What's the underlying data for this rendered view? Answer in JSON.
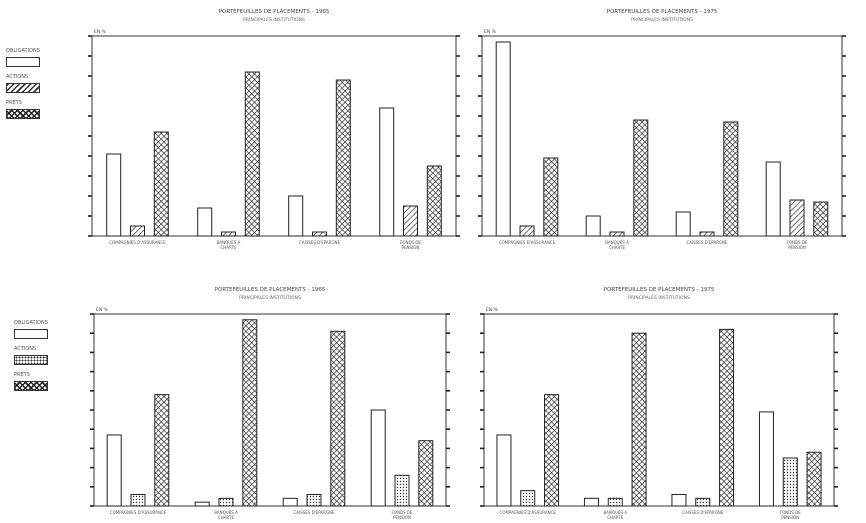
{
  "chart_data": [
    {
      "type": "bar",
      "title": "PORTEFEUILLES DE PLACEMENTS - 1965",
      "subtitle": "PRINCIPALES INSTITUTIONS",
      "ylabel": "EN %",
      "categories": [
        "COMPAGNIES D'ASSURANCE",
        "BANQUES A CHARTE",
        "CAISSES D'EPARGNE",
        "FONDS DE PENSION"
      ],
      "ylim": [
        0,
        100
      ],
      "series": [
        {
          "name": "OBLIGATIONS",
          "values": [
            41,
            14,
            20,
            64
          ]
        },
        {
          "name": "ACTIONS",
          "values": [
            5,
            2,
            2,
            15
          ]
        },
        {
          "name": "PRETS",
          "values": [
            52,
            82,
            78,
            35
          ]
        }
      ]
    },
    {
      "type": "bar",
      "title": "PORTEFEUILLES DE PLACEMENTS - 1975",
      "subtitle": "PRINCIPALES INSTITUTIONS",
      "ylabel": "EN %",
      "categories": [
        "COMPAGNIES D'ASSURANCE",
        "BANQUES A CHARTE",
        "CAISSES D'EPARGNE",
        "FONDS DE PENSION"
      ],
      "ylim": [
        0,
        100
      ],
      "series": [
        {
          "name": "OBLIGATIONS",
          "values": [
            97,
            10,
            12,
            37
          ]
        },
        {
          "name": "ACTIONS",
          "values": [
            5,
            2,
            2,
            18
          ]
        },
        {
          "name": "PRETS",
          "values": [
            39,
            58,
            57,
            17
          ]
        }
      ]
    },
    {
      "type": "bar",
      "title": "PORTEFEUILLES DE PLACEMENTS - 1965",
      "subtitle": "PRINCIPALES INSTITUTIONS",
      "ylabel": "EN %",
      "categories": [
        "COMPAGNIES D'ASSURANCE",
        "BANQUES A CHARTE",
        "CAISSES D'EPARGNE",
        "FONDS DE PENSION"
      ],
      "ylim": [
        0,
        100
      ],
      "series": [
        {
          "name": "OBLIGATIONS",
          "values": [
            37,
            2,
            4,
            50
          ]
        },
        {
          "name": "ACTIONS",
          "values": [
            6,
            4,
            6,
            16
          ]
        },
        {
          "name": "PRETS",
          "values": [
            58,
            97,
            91,
            34
          ]
        }
      ]
    },
    {
      "type": "bar",
      "title": "PORTEFEUILLES DE PLACEMENTS - 1975",
      "subtitle": "PRINCIPALES INSTITUTIONS",
      "ylabel": "EN %",
      "categories": [
        "COMPAGNIES D'ASSURANCE",
        "BANQUES A CHARTE",
        "CAISSES D'EPARGNE",
        "FONDS DE PENSION"
      ],
      "ylim": [
        0,
        100
      ],
      "series": [
        {
          "name": "OBLIGATIONS",
          "values": [
            37,
            4,
            6,
            49
          ]
        },
        {
          "name": "ACTIONS",
          "values": [
            8,
            4,
            4,
            25
          ]
        },
        {
          "name": "PRETS",
          "values": [
            58,
            90,
            92,
            28
          ]
        }
      ]
    }
  ],
  "legend_top": {
    "header": "OBLIGATIONS",
    "items": [
      "OBLIGATIONS",
      "ACTIONS",
      "PRETS"
    ]
  },
  "legend_bottom": {
    "items": [
      "OBLIGATIONS",
      "ACTIONS",
      "PRETS"
    ]
  }
}
